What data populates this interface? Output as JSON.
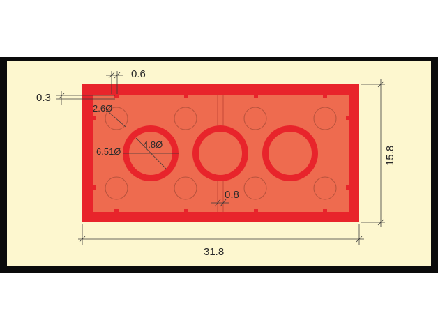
{
  "diagram": {
    "title": "",
    "labels": {
      "wall_thickness": "0.6",
      "tolerance": "0.3",
      "inner_post_diameter": "2.6Ø",
      "tube_inner_diameter": "4.8Ø",
      "tube_outer_diameter": "6.51Ø",
      "rib_thickness": "0.8",
      "length": "31.8",
      "width": "15.8"
    },
    "colors": {
      "background": "#fdf7cf",
      "frame": "#0b0b0b",
      "outer_wall": "#e8242b",
      "inner_fill": "#ee6b4f",
      "tube": "#e8242b",
      "dimension_line": "#3a3a3a"
    }
  }
}
